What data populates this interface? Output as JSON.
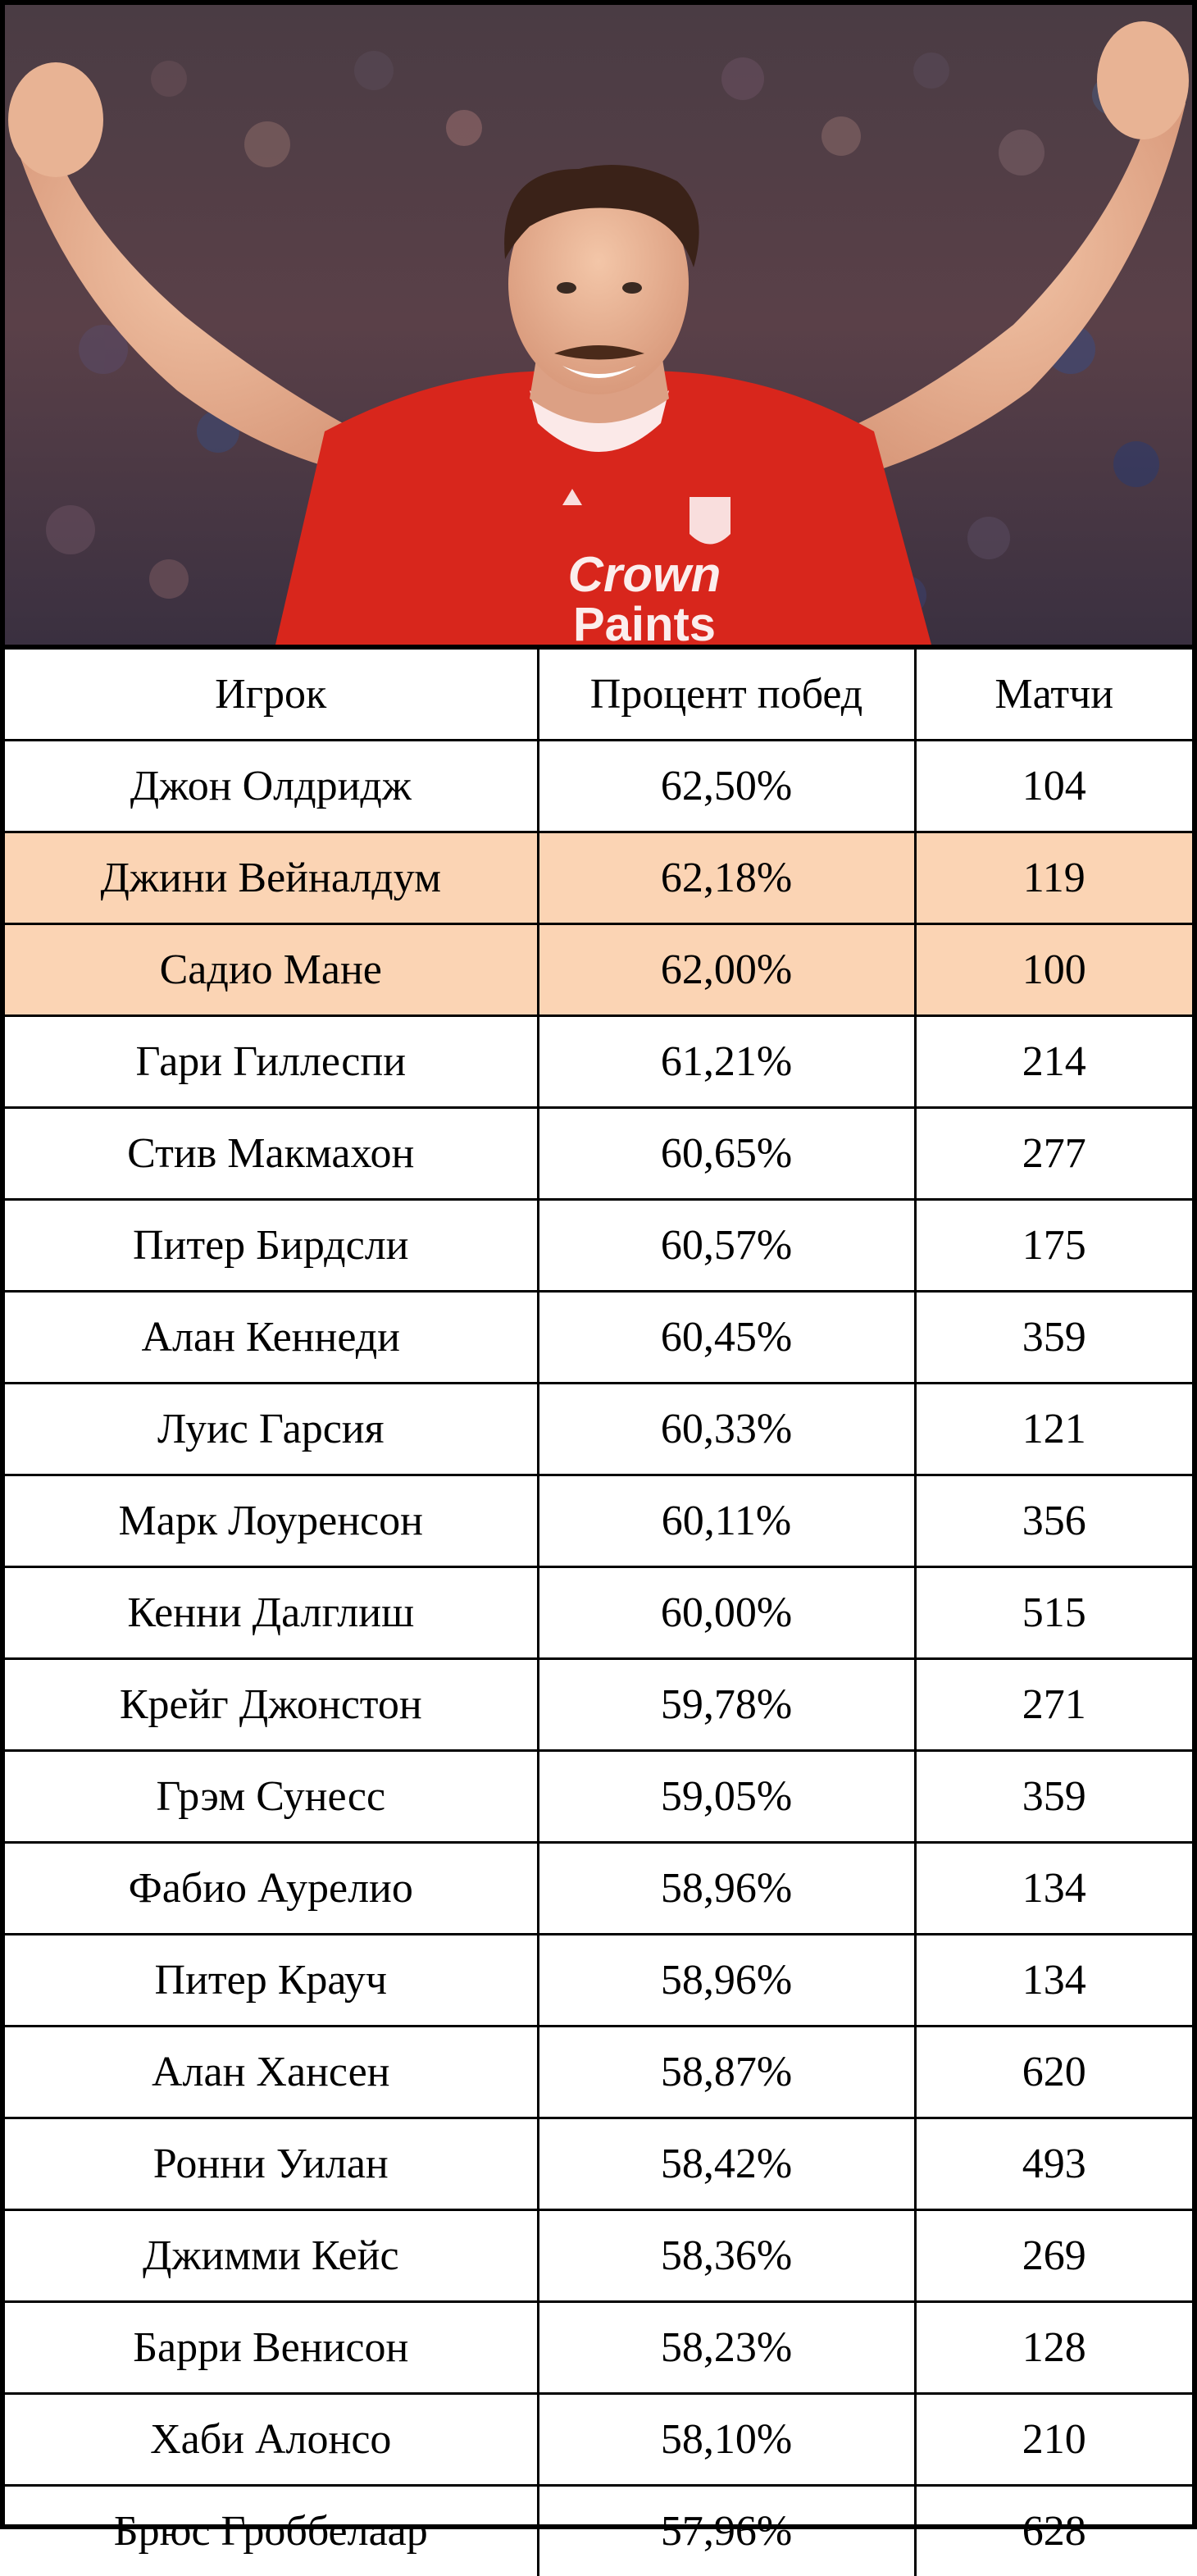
{
  "photo": {
    "jersey_text_line1": "Crown",
    "jersey_text_line2": "Paints"
  },
  "table": {
    "headers": {
      "player": "Игрок",
      "win_pct": "Процент побед",
      "matches": "Матчи"
    },
    "highlight_color": "#fbd4b4",
    "rows": [
      {
        "player": "Джон Олдридж",
        "win_pct": "62,50%",
        "matches": "104",
        "highlighted": false
      },
      {
        "player": "Джини Вейналдум",
        "win_pct": "62,18%",
        "matches": "119",
        "highlighted": true
      },
      {
        "player": "Садио Мане",
        "win_pct": "62,00%",
        "matches": "100",
        "highlighted": true
      },
      {
        "player": "Гари Гиллеспи",
        "win_pct": "61,21%",
        "matches": "214",
        "highlighted": false
      },
      {
        "player": "Стив Макмахон",
        "win_pct": "60,65%",
        "matches": "277",
        "highlighted": false
      },
      {
        "player": "Питер Бирдсли",
        "win_pct": "60,57%",
        "matches": "175",
        "highlighted": false
      },
      {
        "player": "Алан Кеннеди",
        "win_pct": "60,45%",
        "matches": "359",
        "highlighted": false
      },
      {
        "player": "Луис Гарсия",
        "win_pct": "60,33%",
        "matches": "121",
        "highlighted": false
      },
      {
        "player": "Марк Лоуренсон",
        "win_pct": "60,11%",
        "matches": "356",
        "highlighted": false
      },
      {
        "player": "Кенни Далглиш",
        "win_pct": "60,00%",
        "matches": "515",
        "highlighted": false
      },
      {
        "player": "Крейг Джонстон",
        "win_pct": "59,78%",
        "matches": "271",
        "highlighted": false
      },
      {
        "player": "Грэм Сунесс",
        "win_pct": "59,05%",
        "matches": "359",
        "highlighted": false
      },
      {
        "player": "Фабио Аурелио",
        "win_pct": "58,96%",
        "matches": "134",
        "highlighted": false
      },
      {
        "player": "Питер Крауч",
        "win_pct": "58,96%",
        "matches": "134",
        "highlighted": false
      },
      {
        "player": "Алан Хансен",
        "win_pct": "58,87%",
        "matches": "620",
        "highlighted": false
      },
      {
        "player": "Ронни Уилан",
        "win_pct": "58,42%",
        "matches": "493",
        "highlighted": false
      },
      {
        "player": "Джимми Кейс",
        "win_pct": "58,36%",
        "matches": "269",
        "highlighted": false
      },
      {
        "player": "Барри Венисон",
        "win_pct": "58,23%",
        "matches": "128",
        "highlighted": false
      },
      {
        "player": "Хаби Алонсо",
        "win_pct": "58,10%",
        "matches": "210",
        "highlighted": false
      },
      {
        "player": "Брюс Гроббелаар",
        "win_pct": "57,96%",
        "matches": "628",
        "highlighted": false
      }
    ]
  }
}
